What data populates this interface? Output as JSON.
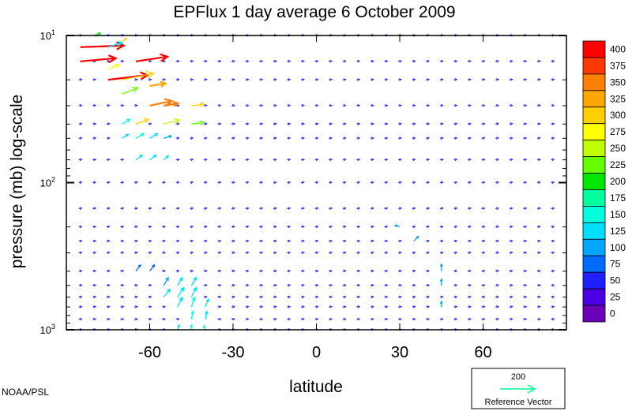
{
  "chart_data": {
    "type": "vector",
    "title": "EPFlux  1 day average  6 October   2009",
    "xlabel": "latitude",
    "ylabel": "pressure (mb)  log-scale",
    "xlim": [
      -90,
      90
    ],
    "ylim": [
      1000,
      10
    ],
    "log_y": true,
    "x_ticks": [
      -60,
      -30,
      0,
      30,
      60
    ],
    "x_tick_labels": [
      "-60",
      "-30",
      "0",
      "30",
      "60"
    ],
    "y_tick_labels": [
      {
        "p": 10,
        "base": "10",
        "exp": "1"
      },
      {
        "p": 100,
        "base": "10",
        "exp": "2"
      },
      {
        "p": 1000,
        "base": "10",
        "exp": "3"
      }
    ],
    "lat_grid": [
      -85,
      -80,
      -75,
      -70,
      -65,
      -60,
      -55,
      -50,
      -45,
      -40,
      -35,
      -30,
      -25,
      -20,
      -15,
      -10,
      -5,
      0,
      5,
      10,
      15,
      20,
      25,
      30,
      35,
      40,
      45,
      50,
      55,
      60,
      65,
      70,
      75,
      80,
      85
    ],
    "p_levels": [
      10,
      15,
      20,
      30,
      40,
      50,
      70,
      100,
      150,
      200,
      250,
      300,
      400,
      500,
      600,
      700,
      850,
      1000
    ],
    "colorbar": {
      "labels": [
        "400",
        "375",
        "350",
        "325",
        "300",
        "275",
        "250",
        "225",
        "200",
        "175",
        "150",
        "125",
        "100",
        "75",
        "50",
        "25",
        "0"
      ],
      "colors": [
        "#ff0000",
        "#ff3a00",
        "#ff7f00",
        "#ffa600",
        "#ffd000",
        "#ffff00",
        "#bfff00",
        "#66ff00",
        "#00e600",
        "#00ffa0",
        "#00ffdd",
        "#00dfff",
        "#00a6ff",
        "#006bff",
        "#1f1fff",
        "#4a00e0",
        "#6a00b8"
      ]
    },
    "strong_vectors": [
      {
        "lat": -85,
        "p": 12,
        "u": 55,
        "v": 2,
        "mag": 400
      },
      {
        "lat": -85,
        "p": 15,
        "u": 45,
        "v": 4,
        "mag": 390
      },
      {
        "lat": -80,
        "p": 10,
        "u": 8,
        "v": 3,
        "mag": 200
      },
      {
        "lat": -75,
        "p": 12,
        "u": 18,
        "v": 6,
        "mag": 130
      },
      {
        "lat": -70,
        "p": 11,
        "u": 6,
        "v": 4,
        "mag": 300
      },
      {
        "lat": -75,
        "p": 17,
        "u": 14,
        "v": 6,
        "mag": 280
      },
      {
        "lat": -65,
        "p": 15,
        "u": 40,
        "v": 6,
        "mag": 400
      },
      {
        "lat": -75,
        "p": 20,
        "u": 50,
        "v": 6,
        "mag": 400
      },
      {
        "lat": -70,
        "p": 20,
        "u": 40,
        "v": 8,
        "mag": 300
      },
      {
        "lat": -60,
        "p": 22,
        "u": 20,
        "v": 3,
        "mag": 330
      },
      {
        "lat": -70,
        "p": 25,
        "u": 20,
        "v": 8,
        "mag": 230
      },
      {
        "lat": -60,
        "p": 30,
        "u": 28,
        "v": 6,
        "mag": 345
      },
      {
        "lat": -55,
        "p": 30,
        "u": 18,
        "v": 3,
        "mag": 360
      },
      {
        "lat": -45,
        "p": 30,
        "u": 16,
        "v": 2,
        "mag": 290
      },
      {
        "lat": -70,
        "p": 40,
        "u": 10,
        "v": 6,
        "mag": 150
      },
      {
        "lat": -65,
        "p": 40,
        "u": 16,
        "v": 6,
        "mag": 300
      },
      {
        "lat": -55,
        "p": 40,
        "u": 20,
        "v": 5,
        "mag": 260
      },
      {
        "lat": -45,
        "p": 40,
        "u": 16,
        "v": 2,
        "mag": 225
      },
      {
        "lat": -70,
        "p": 50,
        "u": 8,
        "v": 5,
        "mag": 130
      },
      {
        "lat": -65,
        "p": 50,
        "u": 10,
        "v": 6,
        "mag": 140
      },
      {
        "lat": -60,
        "p": 50,
        "u": 10,
        "v": 6,
        "mag": 130
      },
      {
        "lat": -55,
        "p": 50,
        "u": 10,
        "v": 3,
        "mag": 110
      },
      {
        "lat": -65,
        "p": 70,
        "u": 8,
        "v": 6,
        "mag": 120
      },
      {
        "lat": -60,
        "p": 70,
        "u": 8,
        "v": 6,
        "mag": 120
      },
      {
        "lat": -55,
        "p": 70,
        "u": 6,
        "v": 5,
        "mag": 115
      },
      {
        "lat": 30,
        "p": 200,
        "u": -6,
        "v": 2,
        "mag": 110
      },
      {
        "lat": 35,
        "p": 250,
        "u": 6,
        "v": 6,
        "mag": 110
      },
      {
        "lat": 45,
        "p": 400,
        "u": 0,
        "v": 9,
        "mag": 100
      },
      {
        "lat": 45,
        "p": 500,
        "u": 0,
        "v": 8,
        "mag": 100
      },
      {
        "lat": 45,
        "p": 700,
        "u": 0,
        "v": 7,
        "mag": 100
      },
      {
        "lat": -65,
        "p": 400,
        "u": 6,
        "v": 8,
        "mag": 80
      },
      {
        "lat": -60,
        "p": 400,
        "u": 6,
        "v": 8,
        "mag": 85
      },
      {
        "lat": -55,
        "p": 500,
        "u": 6,
        "v": 10,
        "mag": 110
      },
      {
        "lat": -50,
        "p": 500,
        "u": 6,
        "v": 10,
        "mag": 120
      },
      {
        "lat": -45,
        "p": 500,
        "u": 6,
        "v": 10,
        "mag": 120
      },
      {
        "lat": -55,
        "p": 600,
        "u": 8,
        "v": 10,
        "mag": 120
      },
      {
        "lat": -50,
        "p": 600,
        "u": 8,
        "v": 12,
        "mag": 125
      },
      {
        "lat": -45,
        "p": 600,
        "u": 6,
        "v": 12,
        "mag": 130
      },
      {
        "lat": -50,
        "p": 700,
        "u": 6,
        "v": 12,
        "mag": 130
      },
      {
        "lat": -45,
        "p": 700,
        "u": 4,
        "v": 12,
        "mag": 140
      },
      {
        "lat": -40,
        "p": 700,
        "u": 4,
        "v": 10,
        "mag": 125
      },
      {
        "lat": -45,
        "p": 850,
        "u": 2,
        "v": 10,
        "mag": 145
      },
      {
        "lat": -40,
        "p": 850,
        "u": 2,
        "v": 10,
        "mag": 135
      },
      {
        "lat": -50,
        "p": 1000,
        "u": 2,
        "v": 6,
        "mag": 130
      },
      {
        "lat": -45,
        "p": 1000,
        "u": 0,
        "v": 6,
        "mag": 150
      },
      {
        "lat": -40,
        "p": 1000,
        "u": -2,
        "v": 5,
        "mag": 140
      }
    ],
    "reference_vector": {
      "value": "200",
      "label": "Reference Vector"
    },
    "credit": "NOAA/PSL"
  }
}
